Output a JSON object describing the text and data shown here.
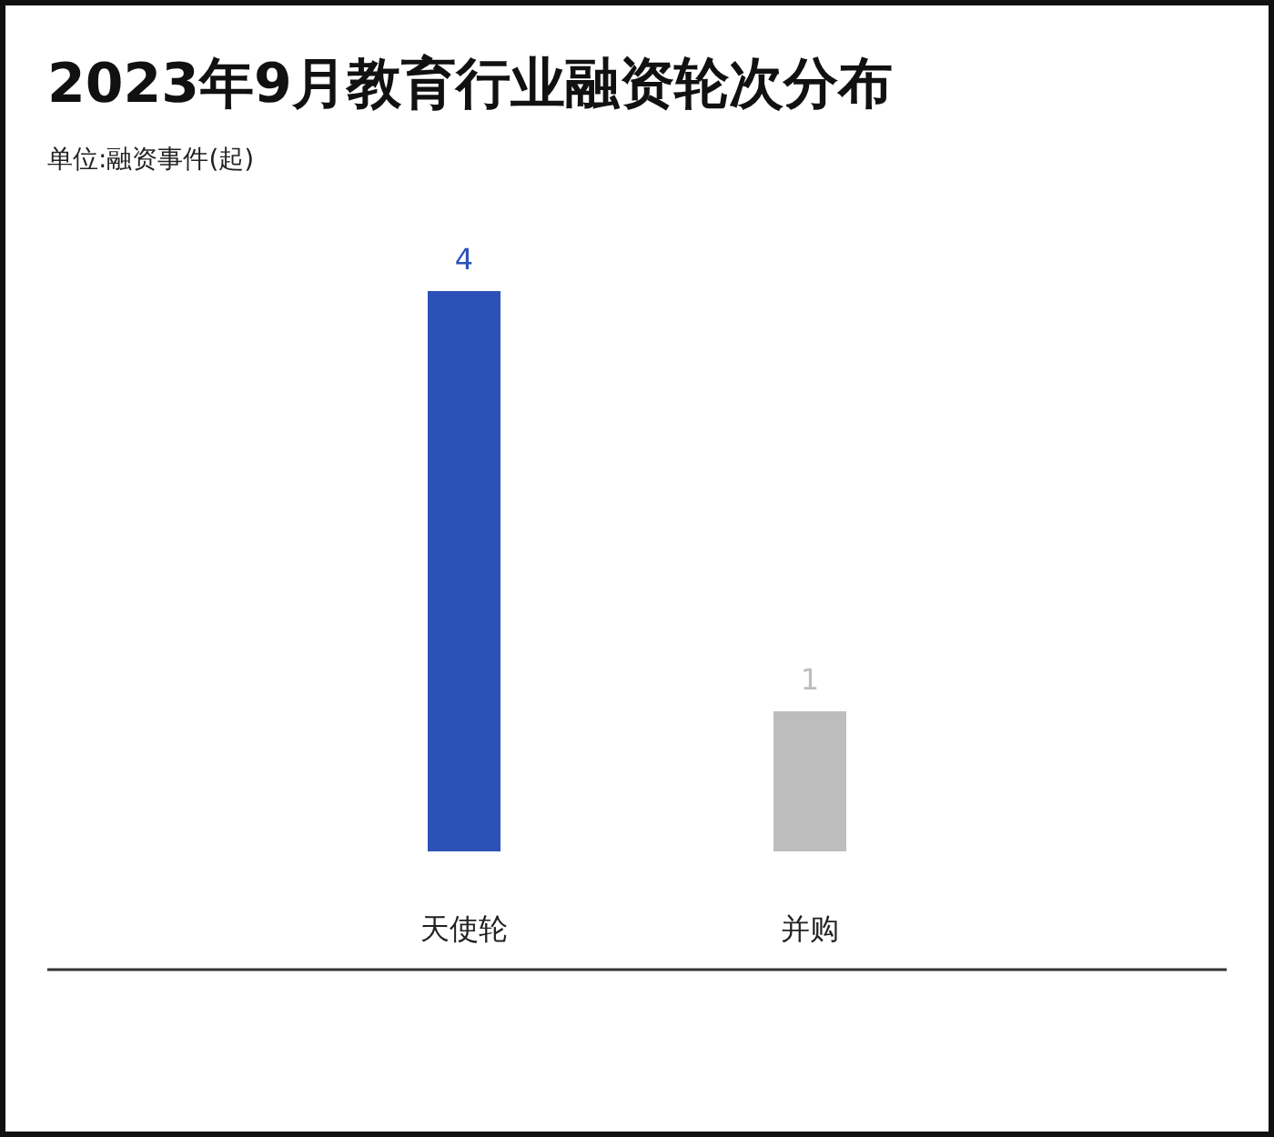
{
  "chart_data": {
    "type": "bar",
    "title": "2023年9月教育行业融资轮次分布",
    "subtitle": "单位:融资事件(起)",
    "categories": [
      "天使轮",
      "并购"
    ],
    "values": [
      4,
      1
    ],
    "colors": [
      "#2c52b8",
      "#bdbdbd"
    ],
    "data_labels": true
  }
}
